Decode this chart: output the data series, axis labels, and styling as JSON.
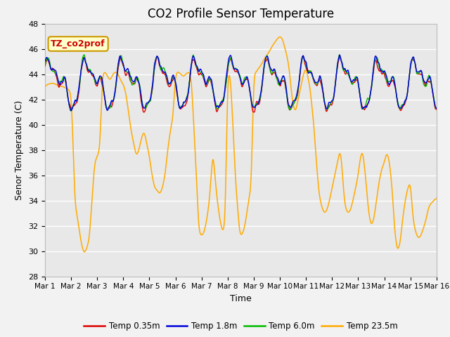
{
  "title": "CO2 Profile Sensor Temperature",
  "xlabel": "Time",
  "ylabel": "Senor Temperature (C)",
  "ylim": [
    28,
    48
  ],
  "xlim": [
    0,
    15
  ],
  "yticks": [
    28,
    30,
    32,
    34,
    36,
    38,
    40,
    42,
    44,
    46,
    48
  ],
  "xtick_labels": [
    "Mar 1",
    "Mar 2",
    "Mar 3",
    "Mar 4",
    "Mar 5",
    "Mar 6",
    "Mar 7",
    "Mar 8",
    "Mar 9",
    "Mar 10",
    "Mar 11",
    "Mar 12",
    "Mar 13",
    "Mar 14",
    "Mar 15",
    "Mar 16"
  ],
  "xtick_positions": [
    0,
    1,
    2,
    3,
    4,
    5,
    6,
    7,
    8,
    9,
    10,
    11,
    12,
    13,
    14,
    15
  ],
  "colors": {
    "temp_035": "#dd0000",
    "temp_18": "#0000dd",
    "temp_60": "#00bb00",
    "temp_235": "#ffaa00"
  },
  "legend_labels": [
    "Temp 0.35m",
    "Temp 1.8m",
    "Temp 6.0m",
    "Temp 23.5m"
  ],
  "annotation_text": "TZ_co2prof",
  "annotation_color": "#cc0000",
  "annotation_bg": "#ffffcc",
  "plot_bg": "#e8e8e8",
  "grid_color": "#ffffff",
  "title_fontsize": 12,
  "axis_fontsize": 9,
  "tick_fontsize": 8
}
